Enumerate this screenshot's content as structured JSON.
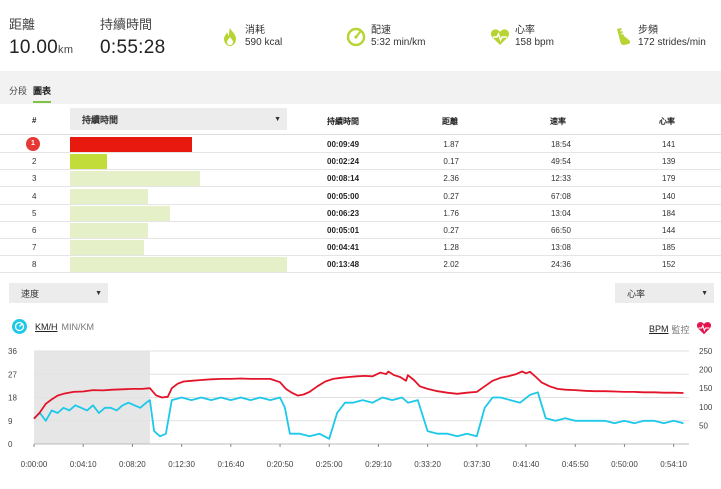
{
  "summary": {
    "distance": {
      "label": "距離",
      "value": "10.00",
      "unit": "km"
    },
    "duration": {
      "label": "持續時間",
      "value": "0:55:28"
    },
    "calories": {
      "label": "消耗",
      "value": "590 kcal",
      "icon": "flame-icon"
    },
    "pace": {
      "label": "配速",
      "value": "5:32 min/km",
      "icon": "speedometer-icon"
    },
    "heart_rate": {
      "label": "心率",
      "value": "158 bpm",
      "icon": "heart-icon"
    },
    "cadence": {
      "label": "步頻",
      "value": "172 strides/min",
      "icon": "shoe-icon"
    }
  },
  "tabs": [
    {
      "label": "分段",
      "active": false
    },
    {
      "label": "圖表",
      "active": true
    }
  ],
  "table": {
    "headers": {
      "index": "#",
      "duration": "持續時間",
      "distance": "距離",
      "pace": "速率",
      "hr": "心率"
    },
    "metric_select": "持續時間",
    "rows": [
      {
        "index": "1",
        "duration": "00:09:49",
        "distance": "1.87",
        "pace": "18:54",
        "hr": "141",
        "bar_fraction": 0.56,
        "highlight": true
      },
      {
        "index": "2",
        "duration": "00:02:24",
        "distance": "0.17",
        "pace": "49:54",
        "hr": "139",
        "bar_fraction": 0.17,
        "highlight": false
      },
      {
        "index": "3",
        "duration": "00:08:14",
        "distance": "2.36",
        "pace": "12:33",
        "hr": "179",
        "bar_fraction": 0.6,
        "highlight": false
      },
      {
        "index": "4",
        "duration": "00:05:00",
        "distance": "0.27",
        "pace": "67:08",
        "hr": "140",
        "bar_fraction": 0.36,
        "highlight": false
      },
      {
        "index": "5",
        "duration": "00:06:23",
        "distance": "1.76",
        "pace": "13:04",
        "hr": "184",
        "bar_fraction": 0.46,
        "highlight": false
      },
      {
        "index": "6",
        "duration": "00:05:01",
        "distance": "0.27",
        "pace": "66:50",
        "hr": "144",
        "bar_fraction": 0.36,
        "highlight": false
      },
      {
        "index": "7",
        "duration": "00:04:41",
        "distance": "1.28",
        "pace": "13:08",
        "hr": "185",
        "bar_fraction": 0.34,
        "highlight": false
      },
      {
        "index": "8",
        "duration": "00:13:48",
        "distance": "2.02",
        "pace": "24:36",
        "hr": "152",
        "bar_fraction": 1.0,
        "highlight": false
      }
    ]
  },
  "chart_controls": {
    "left_select": "速度",
    "right_select": "心率",
    "left_unit_active": "KM/H",
    "left_unit_other": "MIN/KM",
    "right_unit_active": "BPM",
    "right_unit_other": "監控"
  },
  "colors": {
    "accent_green": "#7fc343",
    "bar_highlight": "#e8190f",
    "bar_selected": "#c2dc3a",
    "bar_default": "#e6f0c8",
    "speed_line": "#1ec8e8",
    "hr_line": "#e3142a",
    "selection_shade": "#e6e6e6"
  },
  "chart_data": {
    "type": "line",
    "x_tick_labels": [
      "0:00:00",
      "0:04:10",
      "0:08:20",
      "0:12:30",
      "0:16:40",
      "0:20:50",
      "0:25:00",
      "0:29:10",
      "0:33:20",
      "0:37:30",
      "0:41:40",
      "0:45:50",
      "0:50:00",
      "0:54:10"
    ],
    "x_tick_seconds": [
      0,
      250,
      500,
      750,
      1000,
      1250,
      1500,
      1750,
      2000,
      2250,
      2500,
      2750,
      3000,
      3250
    ],
    "xlim": [
      0,
      3328
    ],
    "y_left": {
      "ticks": [
        "0",
        "9",
        "18",
        "27",
        "36"
      ],
      "ylim": [
        0,
        36
      ]
    },
    "y_right": {
      "ticks": [
        "50",
        "100",
        "150",
        "200",
        "250"
      ],
      "ylim": [
        0,
        250
      ]
    },
    "highlight_range": [
      0,
      589
    ],
    "series": [
      {
        "axis": "left",
        "x": [
          0,
          30,
          60,
          90,
          120,
          150,
          180,
          210,
          240,
          270,
          300,
          330,
          360,
          390,
          420,
          450,
          480,
          510,
          540,
          570,
          589,
          610,
          640,
          670,
          700,
          750,
          800,
          850,
          900,
          950,
          1000,
          1050,
          1100,
          1150,
          1200,
          1250,
          1275,
          1300,
          1350,
          1400,
          1450,
          1500,
          1540,
          1580,
          1620,
          1670,
          1720,
          1770,
          1820,
          1870,
          1900,
          1950,
          2000,
          2050,
          2100,
          2150,
          2200,
          2250,
          2290,
          2330,
          2370,
          2420,
          2470,
          2520,
          2560,
          2600,
          2650,
          2700,
          2750,
          2800,
          2850,
          2900,
          2950,
          3000,
          3050,
          3100,
          3150,
          3200,
          3250,
          3300
        ],
        "y": [
          10,
          12,
          9,
          13,
          12,
          14,
          13,
          15,
          14,
          13,
          15,
          12,
          14,
          14,
          13,
          15,
          16,
          15,
          14,
          16,
          17,
          5,
          3,
          4,
          17,
          18,
          17,
          18,
          17,
          18,
          17,
          18,
          17,
          18,
          17,
          18,
          14,
          4,
          4,
          3,
          4,
          2,
          12,
          16,
          16,
          17,
          16,
          18,
          17,
          18,
          16,
          17,
          5,
          4,
          4,
          3,
          4,
          3,
          14,
          18,
          18,
          17,
          16,
          19,
          20,
          10,
          9,
          10,
          9,
          9,
          9,
          9,
          8,
          9,
          8,
          9,
          9,
          8,
          9,
          8
        ]
      },
      {
        "axis": "right",
        "x": [
          0,
          30,
          60,
          90,
          120,
          150,
          200,
          250,
          300,
          350,
          400,
          450,
          500,
          550,
          589,
          620,
          650,
          680,
          700,
          730,
          760,
          800,
          850,
          900,
          950,
          1000,
          1050,
          1100,
          1150,
          1200,
          1250,
          1280,
          1310,
          1340,
          1370,
          1400,
          1440,
          1480,
          1520,
          1560,
          1600,
          1640,
          1680,
          1720,
          1760,
          1790,
          1800,
          1830,
          1860,
          1890,
          1900,
          1930,
          1960,
          2000,
          2050,
          2100,
          2150,
          2200,
          2250,
          2290,
          2330,
          2370,
          2410,
          2450,
          2480,
          2500,
          2520,
          2550,
          2580,
          2620,
          2660,
          2700,
          2750,
          2800,
          2850,
          2900,
          2950,
          3000,
          3050,
          3100,
          3150,
          3200,
          3250,
          3300
        ],
        "y": [
          68,
          85,
          108,
          120,
          130,
          135,
          140,
          141,
          145,
          144,
          146,
          147,
          148,
          148,
          150,
          131,
          125,
          127,
          150,
          162,
          168,
          170,
          172,
          174,
          175,
          175,
          176,
          175,
          175,
          175,
          166,
          148,
          138,
          130,
          133,
          140,
          155,
          168,
          175,
          178,
          180,
          182,
          183,
          182,
          192,
          188,
          195,
          185,
          180,
          170,
          185,
          172,
          155,
          148,
          142,
          138,
          135,
          138,
          140,
          155,
          170,
          178,
          182,
          188,
          195,
          190,
          194,
          180,
          165,
          155,
          148,
          146,
          145,
          143,
          142,
          142,
          141,
          140,
          140,
          139,
          139,
          138,
          138,
          137
        ]
      }
    ]
  }
}
